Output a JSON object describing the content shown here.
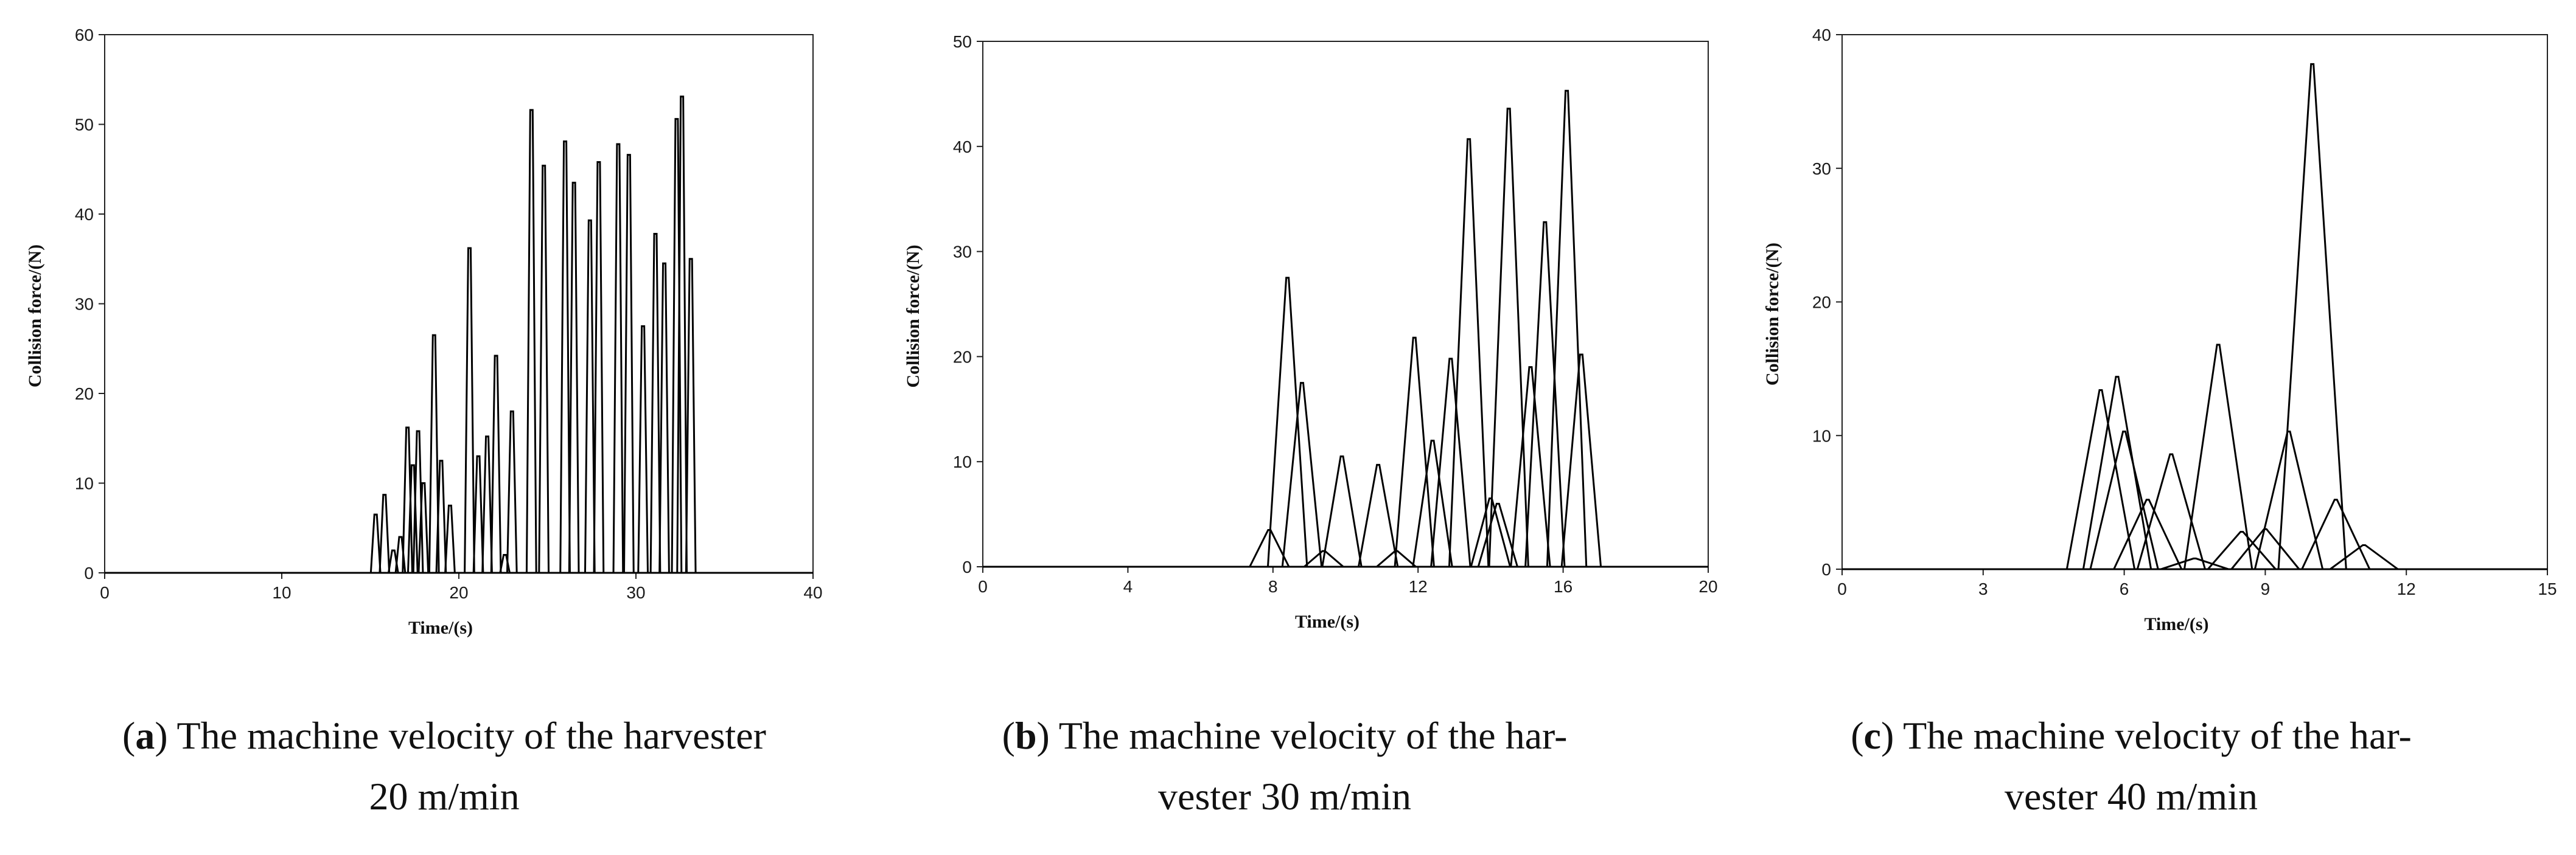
{
  "chart_data": [
    {
      "type": "line",
      "panel_id": "a",
      "xlabel": "Time/(s)",
      "ylabel": "Collision force/(N)",
      "xlim": [
        0,
        40
      ],
      "ylim": [
        0,
        60
      ],
      "xticks": [
        0,
        10,
        20,
        30,
        40
      ],
      "yticks": [
        0,
        10,
        20,
        30,
        40,
        50,
        60
      ],
      "peaks": [
        [
          15.3,
          6.5
        ],
        [
          15.8,
          8.7
        ],
        [
          16.3,
          2.5
        ],
        [
          16.7,
          4.0
        ],
        [
          17.1,
          16.2
        ],
        [
          17.4,
          12.0
        ],
        [
          17.7,
          15.8
        ],
        [
          18.0,
          10.0
        ],
        [
          18.6,
          26.5
        ],
        [
          19.0,
          12.5
        ],
        [
          19.5,
          7.5
        ],
        [
          20.6,
          36.2
        ],
        [
          21.1,
          13.0
        ],
        [
          21.6,
          15.2
        ],
        [
          22.1,
          24.2
        ],
        [
          22.6,
          2.0
        ],
        [
          23.0,
          18.0
        ],
        [
          24.1,
          51.6
        ],
        [
          24.8,
          45.4
        ],
        [
          26.0,
          48.1
        ],
        [
          26.5,
          43.5
        ],
        [
          27.4,
          39.3
        ],
        [
          27.9,
          45.8
        ],
        [
          29.0,
          47.8
        ],
        [
          29.6,
          46.6
        ],
        [
          30.4,
          27.5
        ],
        [
          31.1,
          37.8
        ],
        [
          31.6,
          34.5
        ],
        [
          32.3,
          50.6
        ],
        [
          32.6,
          53.1
        ],
        [
          33.1,
          35.0
        ]
      ]
    },
    {
      "type": "line",
      "panel_id": "b",
      "xlabel": "Time/(s)",
      "ylabel": "Collision force/(N)",
      "xlim": [
        0,
        20
      ],
      "ylim": [
        0,
        50
      ],
      "xticks": [
        0,
        4,
        8,
        12,
        16,
        20
      ],
      "yticks": [
        0,
        10,
        20,
        30,
        40,
        50
      ],
      "peaks": [
        [
          7.9,
          3.5
        ],
        [
          8.4,
          27.5
        ],
        [
          8.8,
          17.5
        ],
        [
          9.4,
          1.5
        ],
        [
          9.9,
          10.5
        ],
        [
          10.9,
          9.7
        ],
        [
          11.4,
          1.5
        ],
        [
          11.9,
          21.8
        ],
        [
          12.4,
          12.0
        ],
        [
          12.9,
          19.8
        ],
        [
          13.4,
          40.7
        ],
        [
          14.0,
          6.5
        ],
        [
          14.2,
          6.0
        ],
        [
          14.5,
          43.6
        ],
        [
          15.1,
          19.0
        ],
        [
          15.5,
          32.8
        ],
        [
          16.1,
          45.3
        ],
        [
          16.5,
          20.2
        ]
      ]
    },
    {
      "type": "line",
      "panel_id": "c",
      "xlabel": "Time/(s)",
      "ylabel": "Collision force/(N)",
      "xlim": [
        0,
        15
      ],
      "ylim": [
        0,
        40
      ],
      "xticks": [
        0,
        3,
        6,
        9,
        12,
        15
      ],
      "yticks": [
        0,
        10,
        20,
        30,
        40
      ],
      "peaks": [
        [
          5.5,
          13.4
        ],
        [
          5.85,
          14.4
        ],
        [
          6.0,
          10.3
        ],
        [
          6.5,
          5.2
        ],
        [
          7.0,
          8.6
        ],
        [
          7.5,
          0.8
        ],
        [
          8.0,
          16.8
        ],
        [
          8.5,
          2.8
        ],
        [
          9.0,
          3.0
        ],
        [
          9.5,
          10.3
        ],
        [
          10.0,
          37.8
        ],
        [
          10.5,
          5.2
        ],
        [
          11.1,
          1.8
        ]
      ]
    }
  ],
  "captions": [
    {
      "letter": "a",
      "line1": "The machine velocity of the harvester",
      "line2": "20 m/min"
    },
    {
      "letter": "b",
      "line1": "The machine velocity of the har-",
      "line2": "vester 30 m/min"
    },
    {
      "letter": "c",
      "line1": "The machine velocity of the har-",
      "line2": "vester 40 m/min"
    }
  ]
}
